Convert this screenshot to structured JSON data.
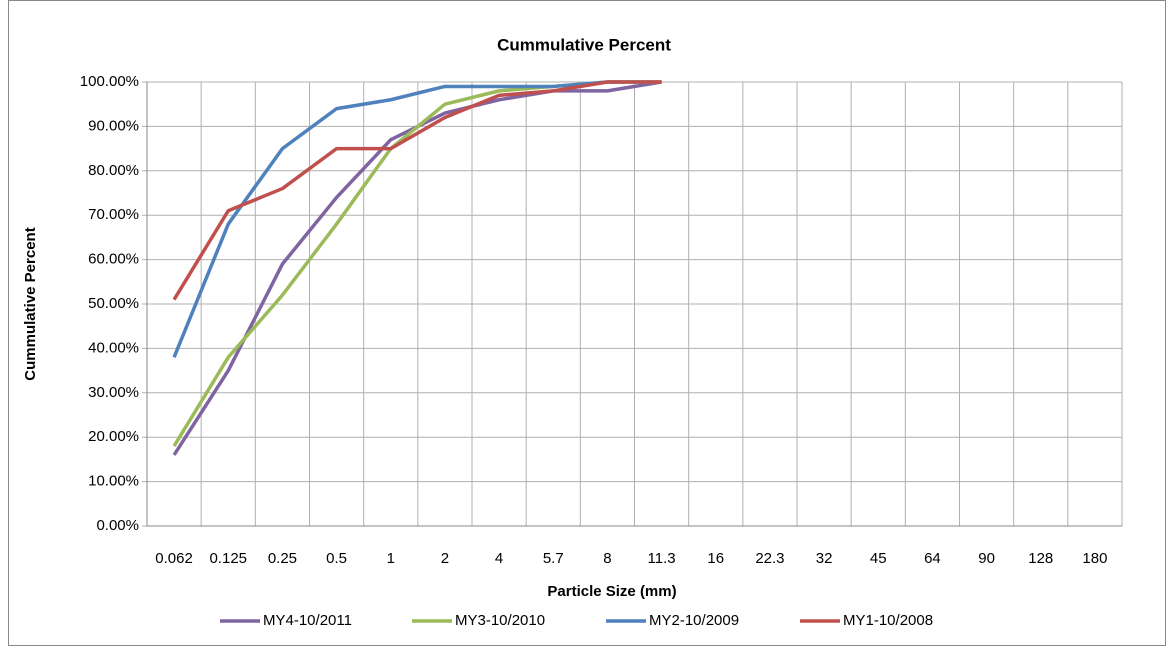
{
  "chart_data": {
    "type": "line",
    "title": "Cummulative Percent",
    "x_label": "Particle Size (mm)",
    "y_label": "Cummulative Percent",
    "categories": [
      "0.062",
      "0.125",
      "0.25",
      "0.5",
      "1",
      "2",
      "4",
      "5.7",
      "8",
      "11.3",
      "16",
      "22.3",
      "32",
      "45",
      "64",
      "90",
      "128",
      "180"
    ],
    "series": [
      {
        "name": "MY4-10/2011",
        "color": "#8064a2",
        "values": [
          16,
          35,
          59,
          74,
          87,
          93,
          96,
          98,
          98,
          100,
          null,
          null,
          null,
          null,
          null,
          null,
          null,
          null
        ]
      },
      {
        "name": "MY3-10/2010",
        "color": "#9bbb59",
        "values": [
          18,
          38,
          52,
          68,
          85,
          95,
          98,
          99,
          100,
          100,
          null,
          null,
          null,
          null,
          null,
          null,
          null,
          null
        ]
      },
      {
        "name": "MY2-10/2009",
        "color": "#4f81bd",
        "values": [
          38,
          68,
          85,
          94,
          96,
          99,
          99,
          99,
          100,
          100,
          null,
          null,
          null,
          null,
          null,
          null,
          null,
          null
        ]
      },
      {
        "name": "MY1-10/2008",
        "color": "#c0504d",
        "values": [
          51,
          71,
          76,
          85,
          85,
          92,
          97,
          98,
          100,
          100,
          null,
          null,
          null,
          null,
          null,
          null,
          null,
          null
        ]
      }
    ],
    "ylim": [
      0,
      100
    ],
    "yticks": [
      {
        "value": 0,
        "label": "0.00%"
      },
      {
        "value": 10,
        "label": "10.00%"
      },
      {
        "value": 20,
        "label": "20.00%"
      },
      {
        "value": 30,
        "label": "30.00%"
      },
      {
        "value": 40,
        "label": "40.00%"
      },
      {
        "value": 50,
        "label": "50.00%"
      },
      {
        "value": 60,
        "label": "60.00%"
      },
      {
        "value": 70,
        "label": "70.00%"
      },
      {
        "value": 80,
        "label": "80.00%"
      },
      {
        "value": 90,
        "label": "90.00%"
      },
      {
        "value": 100,
        "label": "100.00%"
      }
    ],
    "grid": true,
    "legend": "bottom"
  }
}
